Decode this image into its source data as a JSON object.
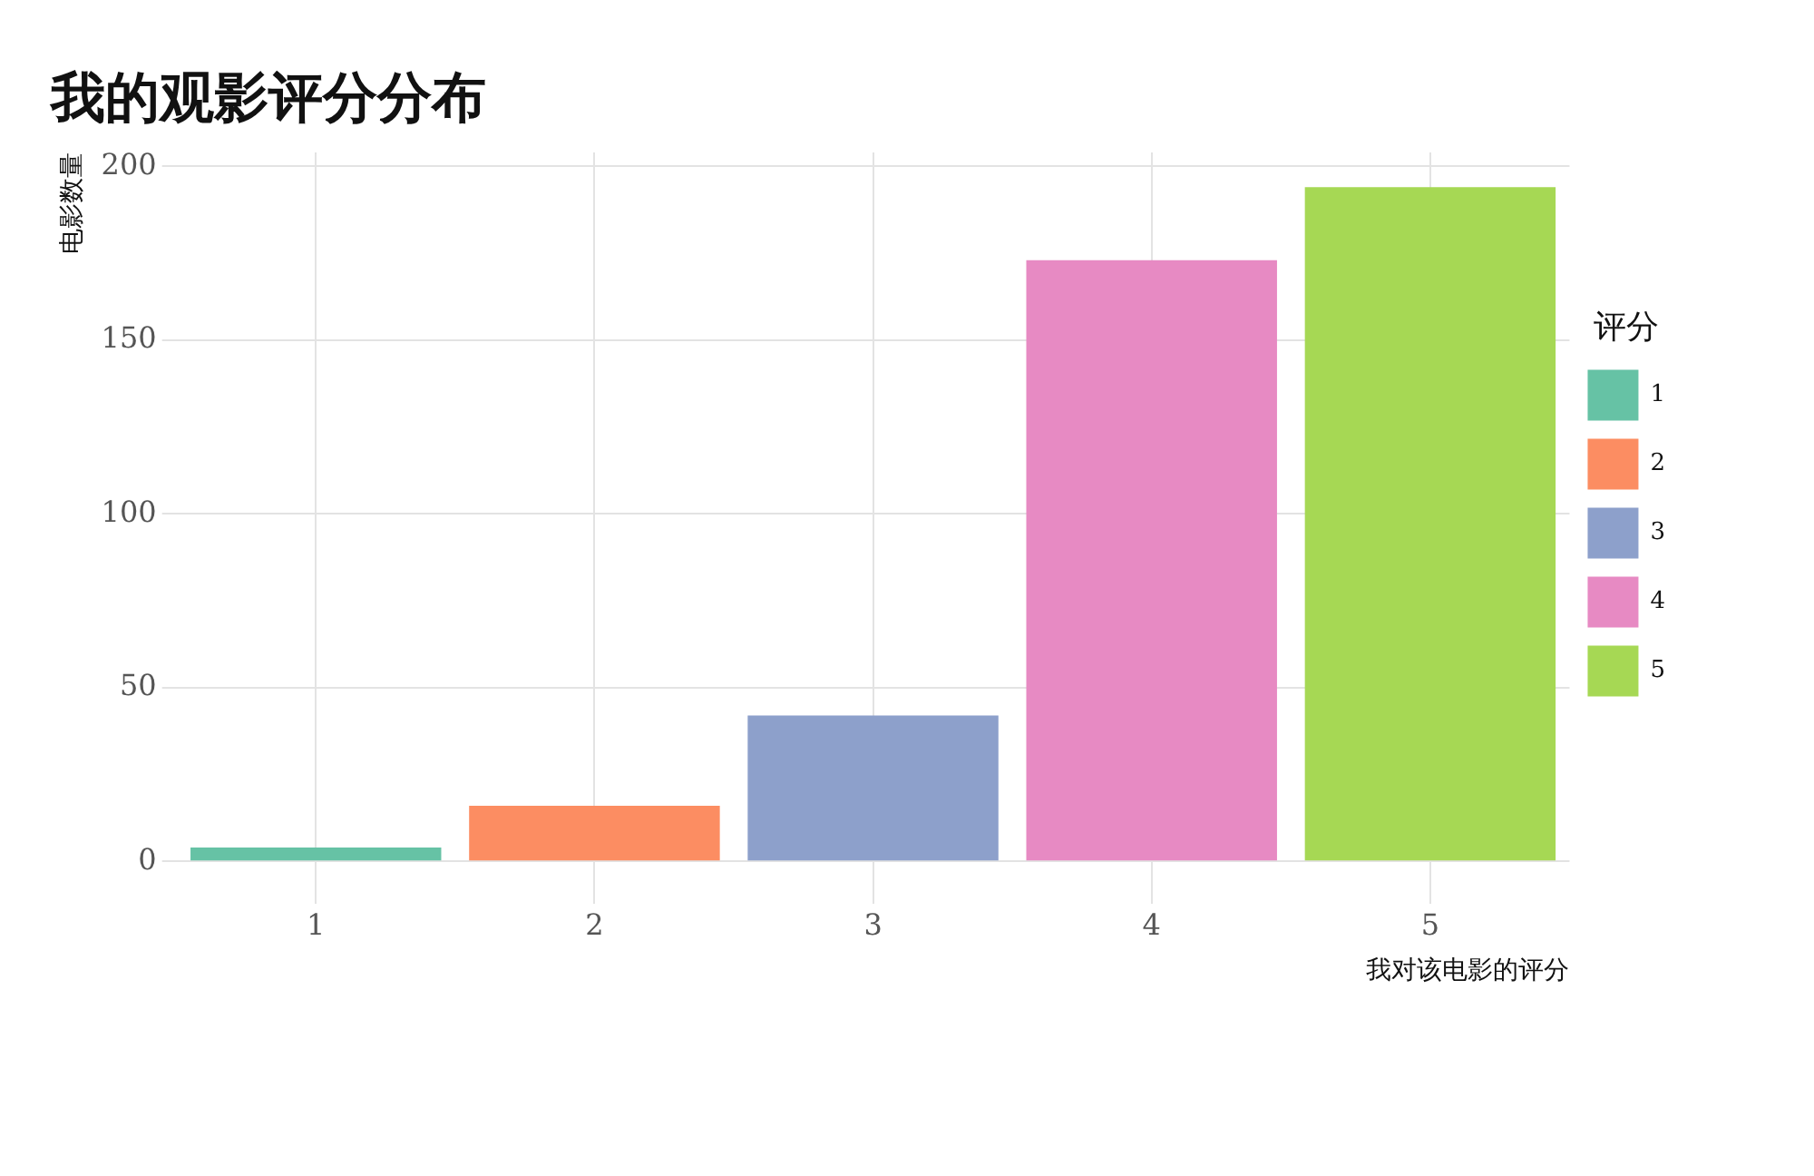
{
  "chart_data": {
    "type": "bar",
    "title": "我的观影评分分布",
    "xlabel": "我对该电影的评分",
    "ylabel": "电影数量",
    "legend_title": "评分",
    "categories": [
      "1",
      "2",
      "3",
      "4",
      "5"
    ],
    "series": [
      {
        "name": "1",
        "color": "#66c2a5",
        "values": [
          4,
          null,
          null,
          null,
          null
        ]
      },
      {
        "name": "2",
        "color": "#fc8d62",
        "values": [
          null,
          16,
          null,
          null,
          null
        ]
      },
      {
        "name": "3",
        "color": "#8da0cb",
        "values": [
          null,
          null,
          42,
          null,
          null
        ]
      },
      {
        "name": "4",
        "color": "#e78ac3",
        "values": [
          null,
          null,
          null,
          173,
          null
        ]
      },
      {
        "name": "5",
        "color": "#a6d854",
        "values": [
          null,
          null,
          null,
          null,
          194
        ]
      }
    ],
    "ylim": [
      -8,
      204
    ],
    "yticks": [
      0,
      50,
      100,
      150,
      200
    ],
    "grid": true,
    "legend": "right"
  }
}
